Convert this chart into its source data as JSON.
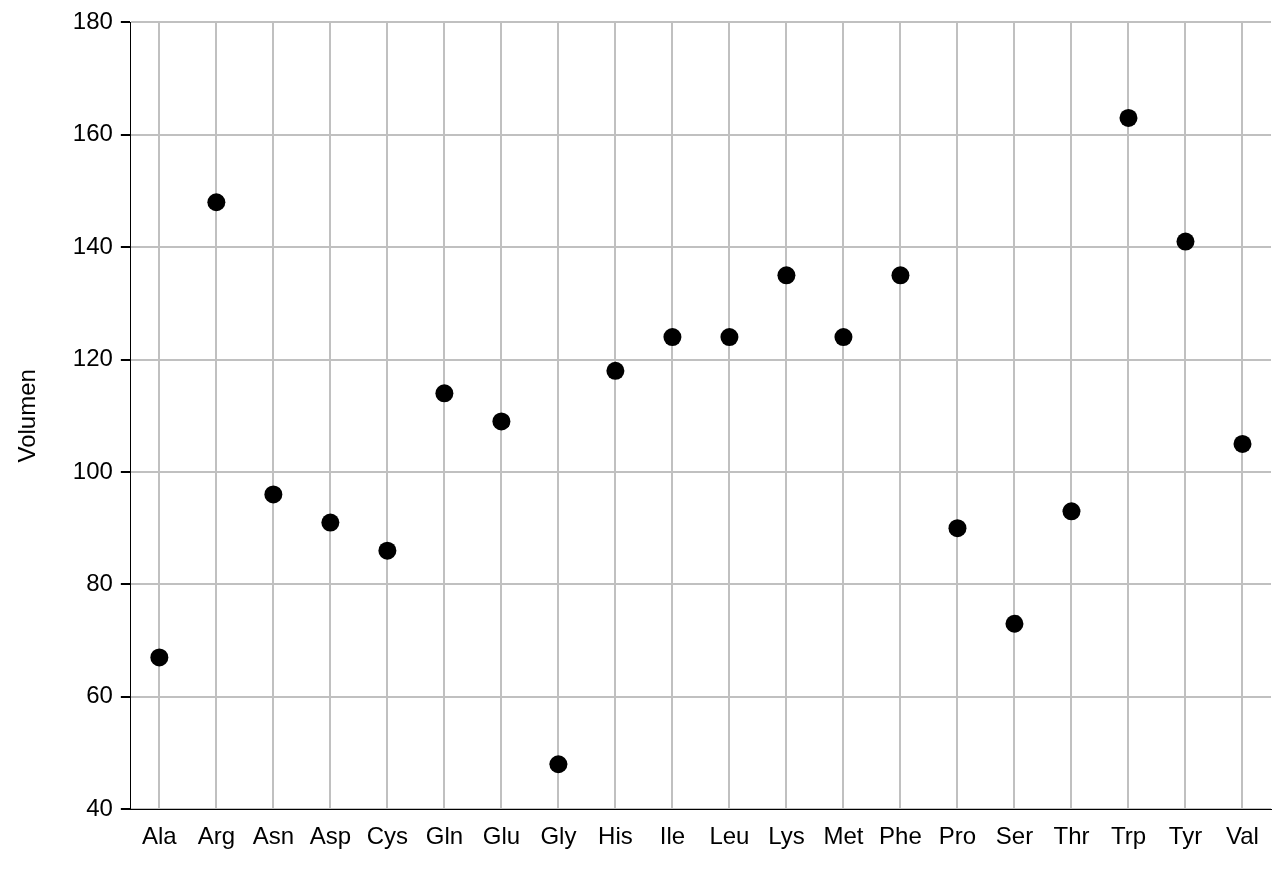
{
  "chart_data": {
    "type": "scatter",
    "ylabel": "Volumen",
    "categories": [
      "Ala",
      "Arg",
      "Asn",
      "Asp",
      "Cys",
      "Gln",
      "Glu",
      "Gly",
      "His",
      "Ile",
      "Leu",
      "Lys",
      "Met",
      "Phe",
      "Pro",
      "Ser",
      "Thr",
      "Trp",
      "Tyr",
      "Val"
    ],
    "values": [
      67,
      148,
      96,
      91,
      86,
      114,
      109,
      48,
      118,
      124,
      124,
      135,
      124,
      135,
      90,
      73,
      93,
      163,
      141,
      105
    ],
    "color": "#000000",
    "marker": "circle",
    "grid": true,
    "ylim": [
      40,
      180
    ],
    "yticks": [
      40,
      60,
      80,
      100,
      120,
      140,
      160,
      180
    ]
  }
}
